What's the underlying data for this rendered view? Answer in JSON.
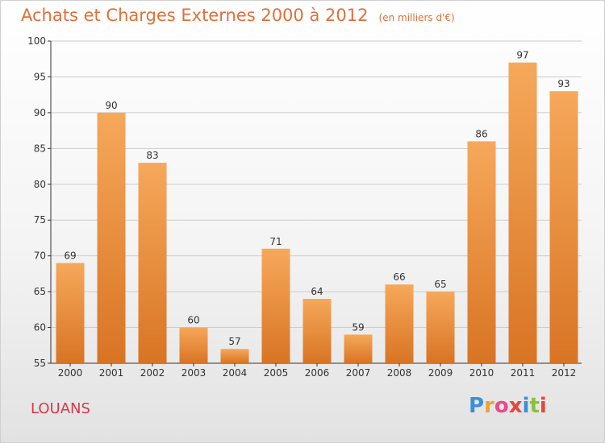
{
  "header": {
    "title": "Achats et Charges Externes 2000 à 2012",
    "subtitle": "(en milliers d'€)"
  },
  "footer": {
    "location": "LOUANS",
    "brand_letters": [
      "P",
      "r",
      "o",
      "x",
      "i",
      "t",
      "i"
    ],
    "brand_colors": [
      "#3a8fd8",
      "#f0a030",
      "#e84a8a",
      "#e8453c",
      "#3a8fd8",
      "#8cc03c",
      "#e8453c"
    ]
  },
  "colors": {
    "bar_light": "#f6a85a",
    "bar_dark": "#d87424",
    "axis": "#333333",
    "grid": "#cccccc",
    "title": "#e0703a",
    "location": "#d4384e"
  },
  "chart_data": {
    "type": "bar",
    "title": "Achats et Charges Externes 2000 à 2012",
    "subtitle": "(en milliers d'€)",
    "categories": [
      "2000",
      "2001",
      "2002",
      "2003",
      "2004",
      "2005",
      "2006",
      "2007",
      "2008",
      "2009",
      "2010",
      "2011",
      "2012"
    ],
    "values": [
      69,
      90,
      83,
      60,
      57,
      71,
      64,
      59,
      66,
      65,
      86,
      97,
      93
    ],
    "ylim": [
      55,
      100
    ],
    "yticks": [
      55,
      60,
      65,
      70,
      75,
      80,
      85,
      90,
      95,
      100
    ],
    "grid": true,
    "xlabel": "",
    "ylabel": ""
  }
}
